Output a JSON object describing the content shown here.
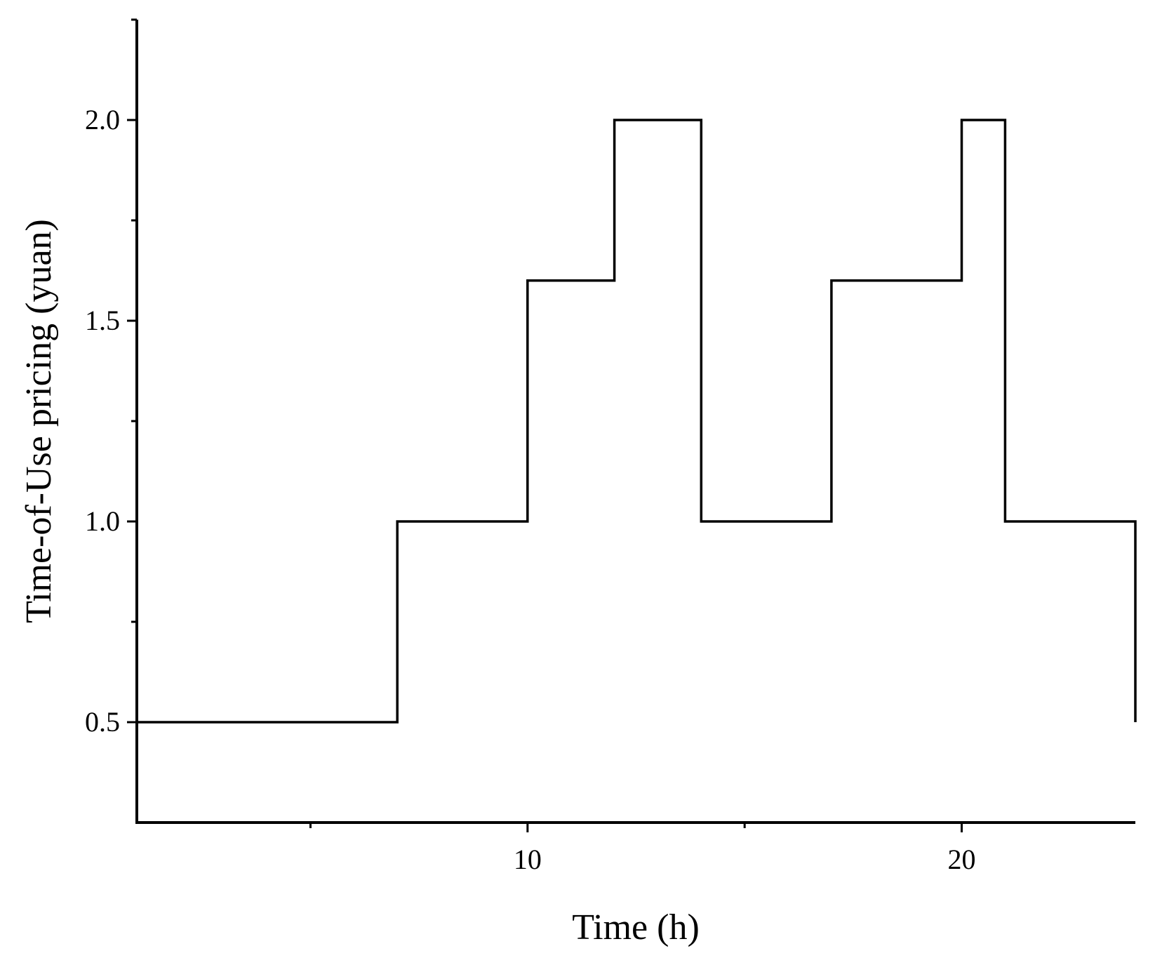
{
  "chart_data": {
    "type": "line",
    "step": true,
    "title": "",
    "xlabel": "Time (h)",
    "ylabel": "Time-of-Use pricing (yuan)",
    "xlim": [
      1,
      24
    ],
    "ylim": [
      0.25,
      2.25
    ],
    "x_ticks_major": [
      10,
      20
    ],
    "x_ticks_minor": [
      5,
      15
    ],
    "x_tick_labels": [
      "10",
      "20"
    ],
    "y_ticks_major": [
      0.5,
      1.0,
      1.5,
      2.0
    ],
    "y_ticks_minor": [
      0.75,
      1.25,
      1.75
    ],
    "y_tick_labels": [
      "0.5",
      "1.0",
      "1.5",
      "2.0"
    ],
    "grid": false,
    "line_color": "#000000",
    "series": [
      {
        "x": [
          1,
          7,
          7,
          10,
          10,
          12,
          12,
          14,
          14,
          17,
          17,
          20,
          20,
          21,
          21,
          24,
          24
        ],
        "y": [
          0.5,
          0.5,
          1.0,
          1.0,
          1.6,
          1.6,
          2.0,
          2.0,
          1.0,
          1.0,
          1.6,
          1.6,
          2.0,
          2.0,
          1.0,
          1.0,
          0.5
        ]
      }
    ]
  }
}
